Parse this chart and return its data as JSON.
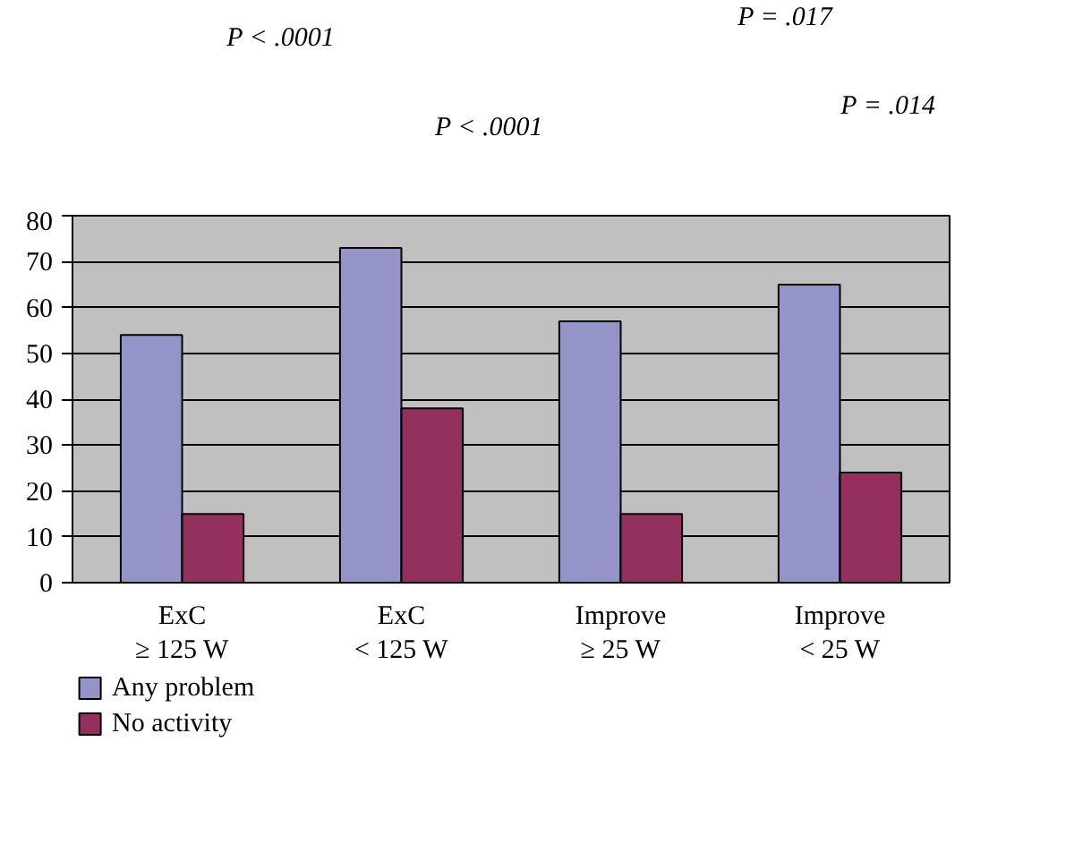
{
  "chart_data": {
    "type": "bar",
    "categories": [
      "ExC\n≥ 125 W",
      "ExC\n< 125 W",
      "Improve\n≥ 25 W",
      "Improve\n< 25 W"
    ],
    "series": [
      {
        "name": "Any problem",
        "color": "#9494c8",
        "values": [
          54,
          73,
          57,
          65
        ]
      },
      {
        "name": "No activity",
        "color": "#94305e",
        "values": [
          15,
          38,
          15,
          24
        ]
      }
    ],
    "ylim": [
      0,
      80
    ],
    "yticks": [
      0,
      10,
      20,
      30,
      40,
      50,
      60,
      70,
      80
    ],
    "grid": "y",
    "legend": "bottom",
    "annotations": [
      "P < .0001",
      "P < .0001",
      "P = .017",
      "P = .014"
    ]
  }
}
